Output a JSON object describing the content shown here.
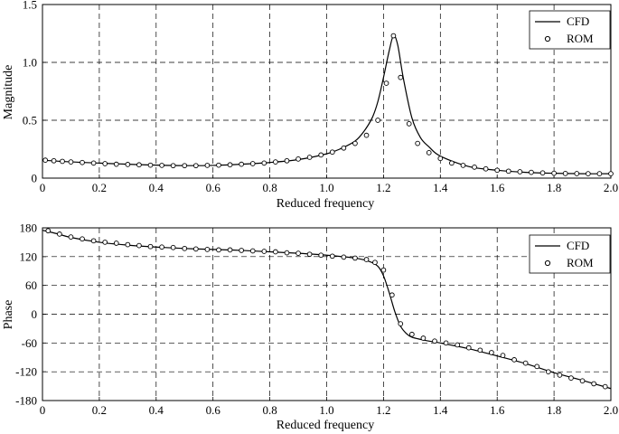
{
  "chart_data": [
    {
      "type": "line",
      "xlabel": "Reduced frequency",
      "ylabel": "Magnitude",
      "xlim": [
        0,
        2.0
      ],
      "ylim": [
        0,
        1.5
      ],
      "xticks": [
        "0",
        "0.2",
        "0.4",
        "0.6",
        "0.8",
        "1.0",
        "1.2",
        "1.4",
        "1.6",
        "1.8",
        "2.0"
      ],
      "yticks": [
        "0",
        "0.5",
        "1.0",
        "1.5"
      ],
      "grid": true,
      "legend": "top-right",
      "series": [
        {
          "name": "CFD",
          "style": "solid-line",
          "x": [
            0,
            0.1,
            0.2,
            0.3,
            0.4,
            0.5,
            0.6,
            0.7,
            0.8,
            0.9,
            1.0,
            1.05,
            1.1,
            1.13,
            1.16,
            1.18,
            1.2,
            1.22,
            1.235,
            1.25,
            1.27,
            1.3,
            1.33,
            1.36,
            1.4,
            1.5,
            1.6,
            1.7,
            1.8,
            1.9,
            2.0
          ],
          "y": [
            0.155,
            0.14,
            0.13,
            0.12,
            0.112,
            0.108,
            0.11,
            0.12,
            0.135,
            0.16,
            0.21,
            0.255,
            0.32,
            0.4,
            0.52,
            0.66,
            0.87,
            1.1,
            1.23,
            1.15,
            0.86,
            0.52,
            0.35,
            0.27,
            0.19,
            0.1,
            0.068,
            0.05,
            0.042,
            0.038,
            0.038
          ]
        },
        {
          "name": "ROM",
          "style": "open-circles",
          "x": [
            0.01,
            0.04,
            0.07,
            0.1,
            0.14,
            0.18,
            0.22,
            0.26,
            0.3,
            0.34,
            0.38,
            0.42,
            0.46,
            0.5,
            0.54,
            0.58,
            0.62,
            0.66,
            0.7,
            0.74,
            0.78,
            0.82,
            0.86,
            0.9,
            0.94,
            0.98,
            1.02,
            1.06,
            1.1,
            1.14,
            1.18,
            1.21,
            1.235,
            1.26,
            1.29,
            1.32,
            1.36,
            1.4,
            1.44,
            1.48,
            1.52,
            1.56,
            1.6,
            1.64,
            1.68,
            1.72,
            1.76,
            1.8,
            1.84,
            1.88,
            1.92,
            1.96,
            2.0
          ],
          "y": [
            0.155,
            0.15,
            0.145,
            0.14,
            0.135,
            0.13,
            0.125,
            0.12,
            0.118,
            0.115,
            0.112,
            0.11,
            0.108,
            0.108,
            0.108,
            0.11,
            0.112,
            0.115,
            0.12,
            0.125,
            0.13,
            0.14,
            0.15,
            0.165,
            0.18,
            0.2,
            0.225,
            0.26,
            0.3,
            0.37,
            0.5,
            0.82,
            1.23,
            0.87,
            0.47,
            0.3,
            0.22,
            0.17,
            0.13,
            0.11,
            0.095,
            0.08,
            0.068,
            0.06,
            0.055,
            0.05,
            0.045,
            0.042,
            0.04,
            0.039,
            0.038,
            0.038,
            0.038
          ]
        }
      ]
    },
    {
      "type": "line",
      "xlabel": "Reduced frequency",
      "ylabel": "Phase",
      "xlim": [
        0,
        2.0
      ],
      "ylim": [
        -180,
        180
      ],
      "xticks": [
        "0",
        "0.2",
        "0.4",
        "0.6",
        "0.8",
        "1.0",
        "1.2",
        "1.4",
        "1.6",
        "1.8",
        "2.0"
      ],
      "yticks": [
        "180",
        "120",
        "60",
        "0",
        "-60",
        "-120",
        "-180"
      ],
      "grid": true,
      "legend": "top-right",
      "series": [
        {
          "name": "CFD",
          "style": "solid-line",
          "x": [
            0,
            0.05,
            0.1,
            0.2,
            0.3,
            0.4,
            0.5,
            0.6,
            0.7,
            0.8,
            0.9,
            1.0,
            1.1,
            1.15,
            1.18,
            1.2,
            1.22,
            1.24,
            1.26,
            1.28,
            1.3,
            1.35,
            1.4,
            1.5,
            1.6,
            1.7,
            1.8,
            1.9,
            2.0
          ],
          "y": [
            175,
            168,
            160,
            150,
            144,
            140,
            137,
            135,
            133,
            130,
            127,
            123,
            117,
            110,
            100,
            80,
            45,
            5,
            -25,
            -40,
            -48,
            -55,
            -60,
            -72,
            -87,
            -103,
            -122,
            -138,
            -155
          ]
        },
        {
          "name": "ROM",
          "style": "open-circles",
          "x": [
            0.02,
            0.06,
            0.1,
            0.14,
            0.18,
            0.22,
            0.26,
            0.3,
            0.34,
            0.38,
            0.42,
            0.46,
            0.5,
            0.54,
            0.58,
            0.62,
            0.66,
            0.7,
            0.74,
            0.78,
            0.82,
            0.86,
            0.9,
            0.94,
            0.98,
            1.02,
            1.06,
            1.1,
            1.14,
            1.17,
            1.2,
            1.23,
            1.26,
            1.3,
            1.34,
            1.38,
            1.42,
            1.46,
            1.5,
            1.54,
            1.58,
            1.62,
            1.66,
            1.7,
            1.74,
            1.78,
            1.82,
            1.86,
            1.9,
            1.94,
            1.98
          ],
          "y": [
            174,
            167,
            161,
            157,
            153,
            150,
            148,
            145,
            143,
            141,
            140,
            139,
            137,
            136,
            135,
            134,
            134,
            133,
            132,
            131,
            130,
            128,
            127,
            125,
            123,
            121,
            119,
            117,
            114,
            108,
            92,
            40,
            -20,
            -42,
            -50,
            -56,
            -60,
            -64,
            -70,
            -75,
            -80,
            -86,
            -95,
            -102,
            -109,
            -120,
            -127,
            -133,
            -139,
            -145,
            -151
          ]
        }
      ]
    }
  ]
}
